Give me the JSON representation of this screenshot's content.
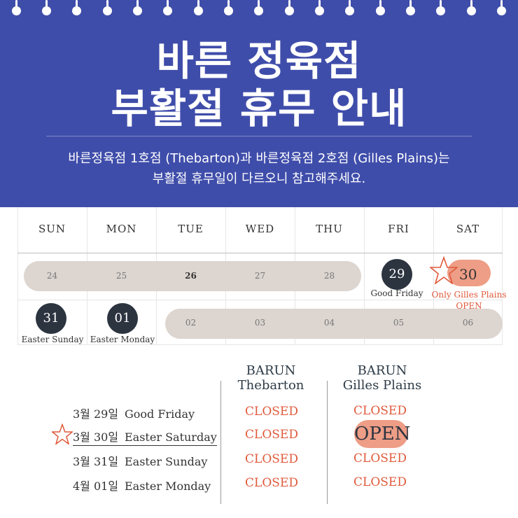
{
  "header": {
    "title_line1": "바른 정육점",
    "title_line2": "부활절 휴무 안내",
    "subtitle_line1": "바른정육점 1호점 (Thebarton)과 바른정육점 2호점 (Gilles Plains)는",
    "subtitle_line2": "부활절 휴무일이 다르오니 참고해주세요.",
    "colors": {
      "background": "#3f4daa",
      "text": "#ffffff"
    }
  },
  "calendar": {
    "weekdays": [
      "SUN",
      "MON",
      "TUE",
      "WED",
      "THU",
      "FRI",
      "SAT"
    ],
    "week1": {
      "days": [
        "24",
        "25",
        "26",
        "27",
        "28"
      ],
      "fri": {
        "day": "29",
        "caption": "Good Friday"
      },
      "sat": {
        "day": "30",
        "caption_line1": "Only Gilles Plains",
        "caption_line2": "OPEN"
      }
    },
    "week2": {
      "sun": {
        "day": "31",
        "caption": "Easter Sunday"
      },
      "mon": {
        "day": "01",
        "caption": "Easter Monday"
      },
      "days": [
        "02",
        "03",
        "04",
        "05",
        "06"
      ]
    },
    "colors": {
      "pill": "#dcd5d0",
      "dark_circle": "#2c3440",
      "highlight": "#ee9d86",
      "accent": "#e05a3c"
    }
  },
  "table": {
    "col1": {
      "line1": "BARUN",
      "line2": "Thebarton"
    },
    "col2": {
      "line1": "BARUN",
      "line2": "Gilles Plains"
    },
    "rows": [
      {
        "date": "3월 29일",
        "name": "Good Friday",
        "thebarton": "CLOSED",
        "gilles": "CLOSED"
      },
      {
        "date": "3월 30일",
        "name": "Easter Saturday",
        "thebarton": "CLOSED",
        "gilles": "OPEN"
      },
      {
        "date": "3월 31일",
        "name": "Easter Sunday",
        "thebarton": "CLOSED",
        "gilles": "CLOSED"
      },
      {
        "date": "4월 01일",
        "name": "Easter Monday",
        "thebarton": "CLOSED",
        "gilles": "CLOSED"
      }
    ]
  },
  "icons": {
    "ring": "binder-ring-icon",
    "star": "star-outline-icon"
  }
}
